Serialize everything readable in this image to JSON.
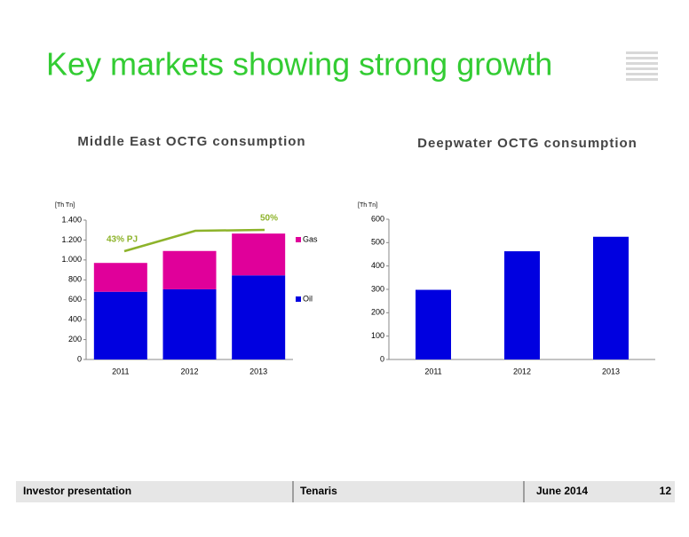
{
  "title": "Key markets showing strong growth",
  "chart_data": [
    {
      "type": "stacked-bar",
      "title": "Middle East OCTG consumption",
      "y_label": "[Th Tn]",
      "categories": [
        "2011",
        "2012",
        "2013"
      ],
      "series": [
        {
          "name": "Oil",
          "color": "#0000e0",
          "values": [
            680,
            705,
            845
          ]
        },
        {
          "name": "Gas",
          "color": "#e0009a",
          "values": [
            290,
            385,
            420
          ]
        }
      ],
      "ylim": [
        0,
        1400
      ],
      "yticks": [
        0,
        200,
        400,
        600,
        800,
        {
          "value": 1000,
          "label": "1.000"
        },
        {
          "value": 1200,
          "label": "1.200"
        },
        {
          "value": 1400,
          "label": "1.400"
        }
      ],
      "annotations": [
        "43% PJ",
        "50%"
      ]
    },
    {
      "type": "bar",
      "title": "Deepwater OCTG consumption",
      "y_label": "[Th Tn]",
      "categories": [
        "2011",
        "2012",
        "2013"
      ],
      "values": [
        298,
        463,
        525
      ],
      "color": "#0000e0",
      "ylim": [
        0,
        600
      ],
      "yticks": [
        0,
        100,
        200,
        300,
        400,
        500,
        600
      ]
    }
  ],
  "footer": {
    "left": "Investor presentation",
    "center": "Tenaris",
    "date": "June 2014",
    "page": "12"
  }
}
